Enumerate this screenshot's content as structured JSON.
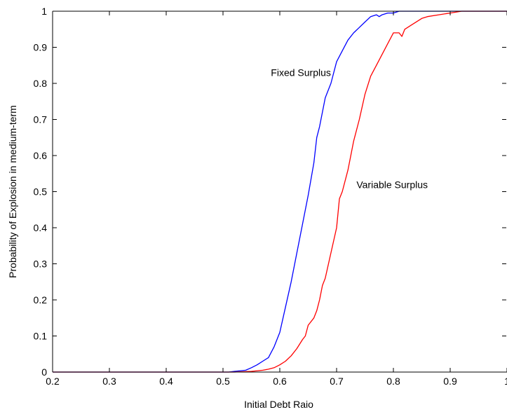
{
  "chart_data": {
    "type": "line",
    "title": "",
    "xlabel": "Initial Debt Raio",
    "ylabel": "Probability of Explosion in medium-term",
    "xlim": [
      0.2,
      1.0
    ],
    "ylim": [
      0,
      1
    ],
    "x_ticks": [
      0.2,
      0.3,
      0.4,
      0.5,
      0.6,
      0.7,
      0.8,
      0.9,
      1.0
    ],
    "x_tick_labels": [
      "0.2",
      "0.3",
      "0.4",
      "0.5",
      "0.6",
      "0.7",
      "0.8",
      "0.9",
      "1"
    ],
    "y_ticks": [
      0,
      0.1,
      0.2,
      0.3,
      0.4,
      0.5,
      0.6,
      0.7,
      0.8,
      0.9,
      1.0
    ],
    "y_tick_labels": [
      "0",
      "0.1",
      "0.2",
      "0.3",
      "0.4",
      "0.5",
      "0.6",
      "0.7",
      "0.8",
      "0.9",
      "1"
    ],
    "grid": false,
    "legend": "none",
    "annotations": [
      {
        "text": "Fixed Surplus",
        "x": 0.69,
        "y": 0.82,
        "anchor": "end"
      },
      {
        "text": "Variable Surplus",
        "x": 0.735,
        "y": 0.51,
        "anchor": "start"
      }
    ],
    "series": [
      {
        "color": "#0000ff",
        "x": [
          0.2,
          0.51,
          0.52,
          0.54,
          0.55,
          0.56,
          0.57,
          0.58,
          0.59,
          0.6,
          0.61,
          0.62,
          0.63,
          0.64,
          0.65,
          0.66,
          0.665,
          0.67,
          0.68,
          0.69,
          0.7,
          0.71,
          0.72,
          0.73,
          0.74,
          0.75,
          0.76,
          0.77,
          0.775,
          0.78,
          0.79,
          0.8,
          0.81,
          0.85,
          0.9,
          1.0
        ],
        "y": [
          0,
          0,
          0.002,
          0.005,
          0.012,
          0.02,
          0.03,
          0.04,
          0.07,
          0.11,
          0.18,
          0.25,
          0.33,
          0.41,
          0.49,
          0.58,
          0.65,
          0.68,
          0.76,
          0.8,
          0.86,
          0.89,
          0.92,
          0.94,
          0.955,
          0.97,
          0.985,
          0.99,
          0.985,
          0.99,
          0.995,
          0.995,
          1.0,
          1.0,
          1.0,
          1.0
        ]
      },
      {
        "color": "#ff0000",
        "x": [
          0.2,
          0.52,
          0.55,
          0.57,
          0.58,
          0.59,
          0.6,
          0.61,
          0.62,
          0.63,
          0.64,
          0.645,
          0.65,
          0.66,
          0.665,
          0.67,
          0.675,
          0.68,
          0.69,
          0.7,
          0.705,
          0.71,
          0.72,
          0.73,
          0.74,
          0.75,
          0.76,
          0.77,
          0.78,
          0.79,
          0.8,
          0.81,
          0.815,
          0.82,
          0.83,
          0.84,
          0.85,
          0.86,
          0.88,
          0.9,
          0.92,
          0.95,
          1.0
        ],
        "y": [
          0,
          0,
          0.002,
          0.005,
          0.008,
          0.012,
          0.02,
          0.03,
          0.045,
          0.065,
          0.09,
          0.1,
          0.13,
          0.15,
          0.17,
          0.2,
          0.24,
          0.26,
          0.33,
          0.4,
          0.48,
          0.5,
          0.56,
          0.64,
          0.7,
          0.77,
          0.82,
          0.85,
          0.88,
          0.91,
          0.94,
          0.94,
          0.93,
          0.95,
          0.96,
          0.97,
          0.98,
          0.985,
          0.99,
          0.995,
          1.0,
          1.0,
          1.0
        ]
      }
    ]
  }
}
